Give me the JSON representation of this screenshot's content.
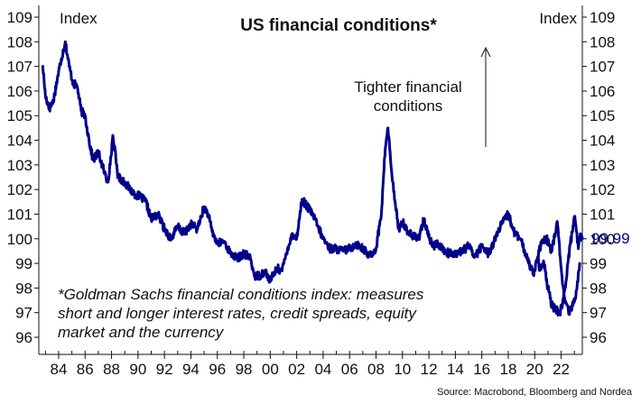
{
  "chart_data": {
    "type": "line",
    "title": "US financial conditions*",
    "ylabel_left": "Index",
    "ylabel_right": "Index",
    "ylim": [
      96,
      109
    ],
    "y_ticks": [
      "96",
      "97",
      "98",
      "99",
      "100",
      "101",
      "102",
      "103",
      "104",
      "105",
      "106",
      "107",
      "108",
      "109"
    ],
    "xlim": [
      1982.5,
      2023.6
    ],
    "x_ticks": [
      1984,
      1986,
      1988,
      1990,
      1992,
      1994,
      1996,
      1998,
      2000,
      2002,
      2004,
      2006,
      2008,
      2010,
      2012,
      2014,
      2016,
      2018,
      2020,
      2022
    ],
    "x_tick_labels": [
      "84",
      "86",
      "88",
      "90",
      "92",
      "94",
      "96",
      "98",
      "00",
      "02",
      "04",
      "06",
      "08",
      "10",
      "12",
      "14",
      "16",
      "18",
      "20",
      "22"
    ],
    "annotation": [
      "Tighter financial",
      "conditions"
    ],
    "footnote": [
      "*Goldman Sachs financial conditions index: measures",
      "short and longer interest rates, credit spreads, equity",
      "market and the currency"
    ],
    "last_value_label": "99.99",
    "source": "Source: Macrobond, Bloomberg and Nordea",
    "line_color": "#00008b",
    "series": [
      {
        "x": [
          1982.8,
          1983.0,
          1983.3,
          1983.6,
          1983.9,
          1984.2,
          1984.5,
          1984.8,
          1985.1,
          1985.4,
          1985.7,
          1986.0,
          1986.3,
          1986.6,
          1987.0,
          1987.4,
          1987.7,
          1987.9,
          1988.1,
          1988.5,
          1989.0,
          1989.4,
          1989.8,
          1990.2,
          1990.6,
          1991.0,
          1991.5,
          1992.0,
          1992.5,
          1993.0,
          1993.5,
          1994.0,
          1994.5,
          1995.0,
          1995.3,
          1995.6,
          1996.0,
          1996.5,
          1997.0,
          1997.5,
          1998.0,
          1998.5,
          1998.8,
          1999.2,
          1999.6,
          2000.0,
          2000.5,
          2000.9,
          2001.3,
          2001.7,
          2002.0,
          2002.4,
          2002.8,
          2003.2,
          2003.6,
          2004.0,
          2004.5,
          2005.0,
          2005.5,
          2006.0,
          2006.5,
          2007.0,
          2007.5,
          2008.0,
          2008.4,
          2008.7,
          2008.9,
          2009.1,
          2009.4,
          2009.7,
          2010.0,
          2010.4,
          2010.8,
          2011.2,
          2011.6,
          2011.9,
          2012.3,
          2012.7,
          2013.0,
          2013.5,
          2014.0,
          2014.5,
          2015.0,
          2015.5,
          2016.0,
          2016.5,
          2017.0,
          2017.5,
          2018.0,
          2018.5,
          2018.9,
          2019.3,
          2019.6,
          2019.9,
          2020.2,
          2020.5,
          2020.9,
          2021.3,
          2021.7,
          2022.0,
          2022.3,
          2022.6,
          2022.9,
          2023.2,
          2023.4
        ],
        "values": [
          107.0,
          105.8,
          105.3,
          105.6,
          106.5,
          107.3,
          108.0,
          107.0,
          106.3,
          106.2,
          105.2,
          105.0,
          104.0,
          103.2,
          103.5,
          102.8,
          102.3,
          103.0,
          104.2,
          102.5,
          102.3,
          102.0,
          101.8,
          101.7,
          101.5,
          100.8,
          101.0,
          100.4,
          100.0,
          100.5,
          100.2,
          100.6,
          100.4,
          101.3,
          101.0,
          100.3,
          99.8,
          99.9,
          99.4,
          99.2,
          99.4,
          99.2,
          98.5,
          98.5,
          98.7,
          98.3,
          98.8,
          98.7,
          99.6,
          100.2,
          100.0,
          101.6,
          101.3,
          101.0,
          100.5,
          100.0,
          99.6,
          99.6,
          99.5,
          99.6,
          99.8,
          99.6,
          99.3,
          99.6,
          101.0,
          103.7,
          104.5,
          103.2,
          101.6,
          100.4,
          100.7,
          100.3,
          100.1,
          100.0,
          100.8,
          100.2,
          99.7,
          99.8,
          99.6,
          99.4,
          99.4,
          99.5,
          99.7,
          99.3,
          99.7,
          99.4,
          100.0,
          100.6,
          101.0,
          100.2,
          100.0,
          99.4,
          99.0,
          98.6,
          99.2,
          99.8,
          100.0,
          99.5,
          100.7,
          98.8,
          97.4,
          97.0,
          97.3,
          98.0,
          99.0
        ]
      },
      {
        "x": [
          2020.2,
          2020.4,
          2020.7,
          2021.0,
          2021.3,
          2021.6,
          2021.9,
          2022.1,
          2022.3,
          2022.5,
          2022.7,
          2022.9,
          2023.0,
          2023.15,
          2023.3,
          2023.45,
          2023.6
        ],
        "values": [
          99.2,
          98.8,
          99.0,
          98.0,
          97.3,
          97.1,
          97.0,
          97.3,
          98.0,
          99.0,
          99.8,
          100.5,
          100.9,
          100.3,
          99.6,
          100.2,
          100.0
        ]
      }
    ]
  }
}
